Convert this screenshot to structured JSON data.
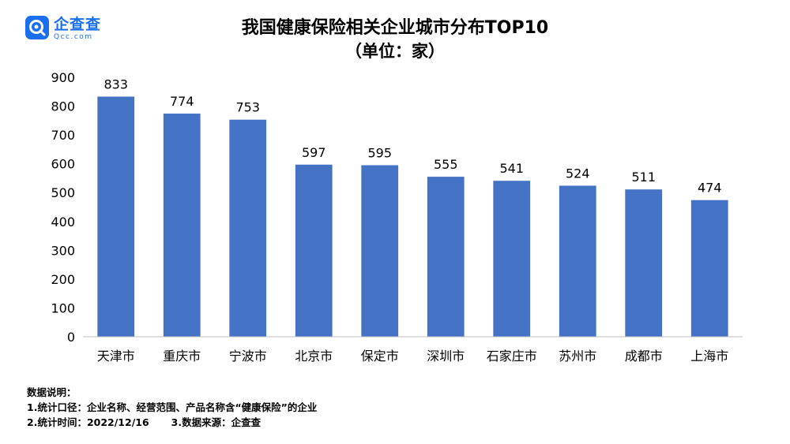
{
  "logo": {
    "name": "企查查",
    "sub": "Qcc.com"
  },
  "chart_data": {
    "type": "bar",
    "title": "我国健康保险相关企业城市分布TOP10",
    "subtitle": "（单位：家）",
    "categories": [
      "天津市",
      "重庆市",
      "宁波市",
      "北京市",
      "保定市",
      "深圳市",
      "石家庄市",
      "苏州市",
      "成都市",
      "上海市"
    ],
    "values": [
      833,
      774,
      753,
      597,
      595,
      555,
      541,
      524,
      511,
      474
    ],
    "ylim": [
      0,
      900
    ],
    "yticks": [
      0,
      100,
      200,
      300,
      400,
      500,
      600,
      700,
      800,
      900
    ],
    "bar_color": "#4472c4",
    "grid": false,
    "legend": "none"
  },
  "notes": {
    "heading": "数据说明：",
    "line1": "1.统计口径：企业名称、经营范围、产品名称含“健康保险”的企业",
    "line2a": "2.统计时间：2022/12/16",
    "line2b": "3.数据来源：企查查"
  }
}
